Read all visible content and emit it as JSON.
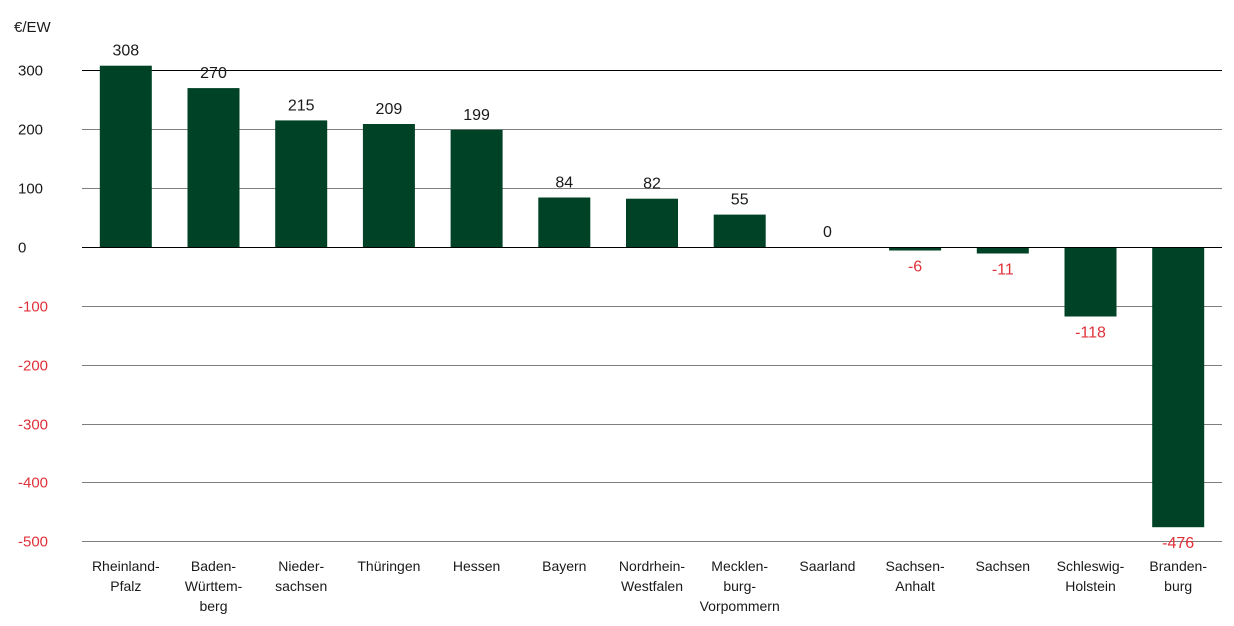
{
  "chart_data": {
    "type": "bar",
    "ylabel": "€/EW",
    "ylim": [
      -500,
      300
    ],
    "yticks": [
      300,
      200,
      100,
      0,
      -100,
      -200,
      -300,
      -400,
      -500
    ],
    "ytick_labels": [
      "300",
      "200",
      "100",
      "0",
      "-100",
      "-200",
      "-300",
      "-400",
      "-500"
    ],
    "grid": true,
    "categories": [
      [
        "Rheinland-",
        "Pfalz"
      ],
      [
        "Baden-",
        "Württem-",
        "berg"
      ],
      [
        "Nieder-",
        "sachsen"
      ],
      [
        "Thüringen"
      ],
      [
        "Hessen"
      ],
      [
        "Bayern"
      ],
      [
        "Nordrhein-",
        "Westfalen"
      ],
      [
        "Mecklen-",
        "burg-",
        "Vorpommern"
      ],
      [
        "Saarland"
      ],
      [
        "Sachsen-",
        "Anhalt"
      ],
      [
        "Sachsen"
      ],
      [
        "Schleswig-",
        "Holstein"
      ],
      [
        "Branden-",
        "burg"
      ]
    ],
    "values": [
      308,
      270,
      215,
      209,
      199,
      84,
      82,
      55,
      0,
      -6,
      -11,
      -118,
      -476
    ],
    "value_labels": [
      "308",
      "270",
      "215",
      "209",
      "199",
      "84",
      "82",
      "55",
      "0",
      "-6",
      "-11",
      "-118",
      "-476"
    ]
  },
  "colors": {
    "bar": "#004225",
    "positive_label": "#1a1a1a",
    "negative_label": "#e0313a",
    "axis_text": "#1a1a1a"
  }
}
